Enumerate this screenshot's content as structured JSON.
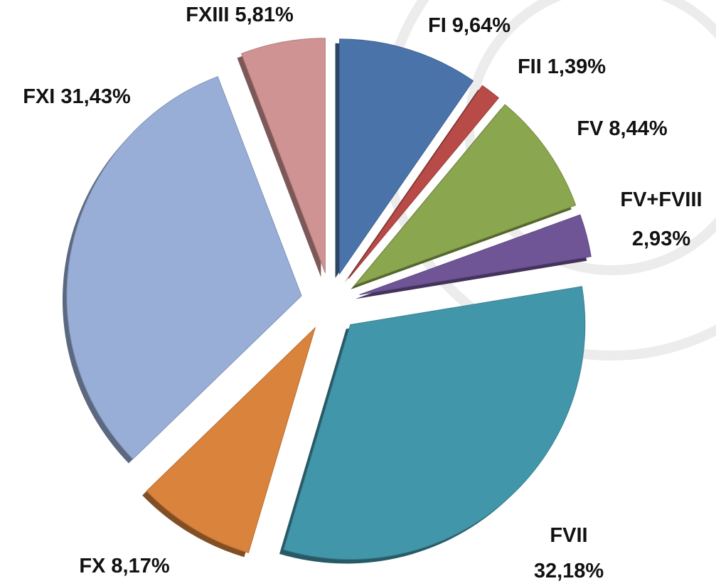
{
  "chart_data": {
    "type": "pie",
    "categories": [
      "FI",
      "FII",
      "FV",
      "FV+FVIII",
      "FVII",
      "FX",
      "FXI",
      "FXIII"
    ],
    "values": [
      9.64,
      1.39,
      8.44,
      2.93,
      32.18,
      8.17,
      31.43,
      5.81
    ],
    "value_labels": [
      "9,64%",
      "1,39%",
      "8,44%",
      "2,93%",
      "32,18%",
      "8,17%",
      "31,43%",
      "5,81%"
    ],
    "colors": [
      "#4a73aa",
      "#b84a47",
      "#8aa64e",
      "#6f5596",
      "#4296aa",
      "#d9833d",
      "#98aed6",
      "#d09393"
    ]
  }
}
